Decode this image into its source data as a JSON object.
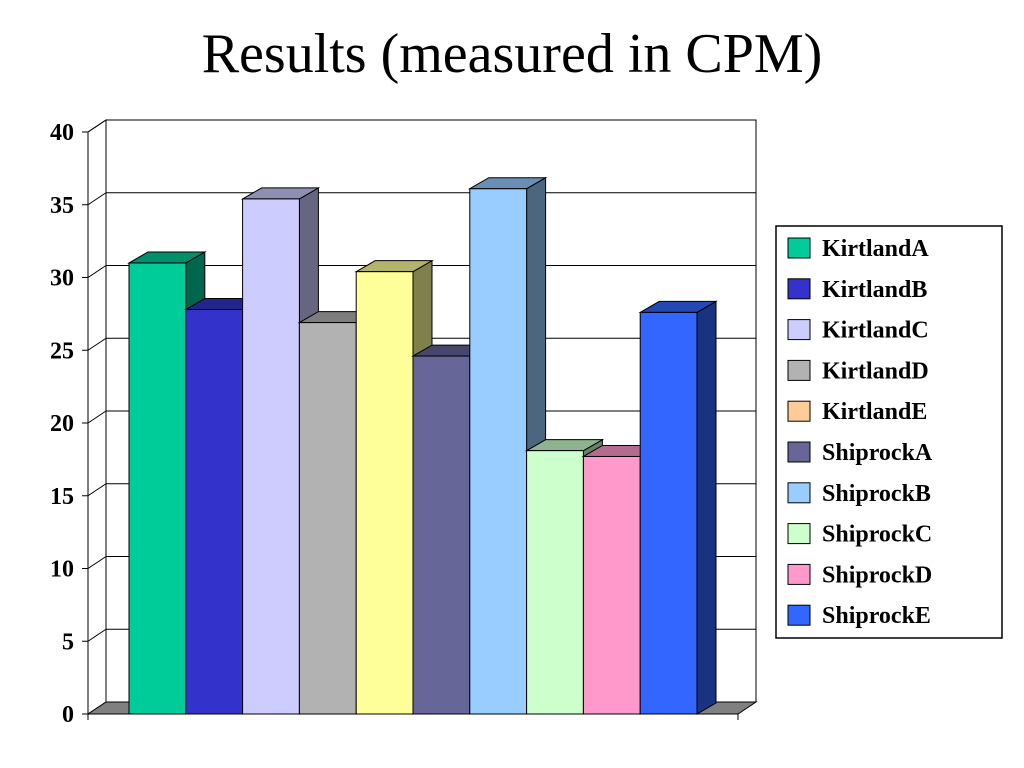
{
  "slide": {
    "title": "Results (measured in CPM)"
  },
  "chart_data": {
    "type": "bar",
    "title": "",
    "xlabel": "",
    "ylabel": "",
    "ylim": [
      0,
      40
    ],
    "yticks": [
      0,
      5,
      10,
      15,
      20,
      25,
      30,
      35,
      40
    ],
    "grid": true,
    "legend_position": "right",
    "three_d": true,
    "series": [
      {
        "name": "KirtlandA",
        "value": 31,
        "color": "#00CC99"
      },
      {
        "name": "KirtlandB",
        "value": 27.8,
        "color": "#3333CC"
      },
      {
        "name": "KirtlandC",
        "value": 35.4,
        "color": "#CCCCFF"
      },
      {
        "name": "KirtlandD",
        "value": 26.9,
        "color": "#B2B2B2"
      },
      {
        "name": "KirtlandE",
        "value": 30.4,
        "color": "#FFFF99"
      },
      {
        "name": "ShiprockA",
        "value": 24.6,
        "color": "#666699"
      },
      {
        "name": "ShiprockB",
        "value": 36.1,
        "color": "#99CCFF"
      },
      {
        "name": "ShiprockC",
        "value": 18.1,
        "color": "#CCFFCC"
      },
      {
        "name": "ShiprockD",
        "value": 17.7,
        "color": "#FF99CC"
      },
      {
        "name": "ShiprockE",
        "value": 27.6,
        "color": "#3366FF"
      }
    ],
    "legend_swatch_overrides": {
      "KirtlandE": "#FFCC99"
    }
  }
}
